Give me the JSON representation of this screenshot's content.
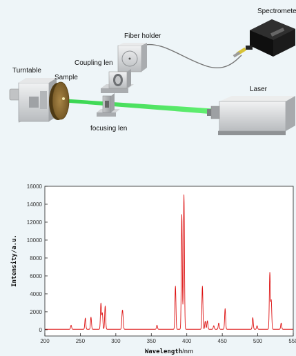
{
  "setup": {
    "labels": {
      "spectrometer": "Spectrometer",
      "fiber_holder": "Fiber holder",
      "coupling_len": "Coupling len",
      "turntable": "Turntable",
      "sample": "Sample",
      "laser": "Laser",
      "focusing_len": "focusing len"
    },
    "colors": {
      "laser_beam": "#33e04a",
      "sample_disk": "#8a6a2e",
      "device_body": "#d9dadb",
      "spectrometer_body": "#1c1c1c"
    }
  },
  "chart_data": {
    "type": "line",
    "xlabel": "Wavelength",
    "xunit": "/nm",
    "ylabel": "Intensity/a.u.",
    "xlim": [
      200,
      550
    ],
    "ylim": [
      -700,
      16000
    ],
    "x_ticks": [
      200,
      250,
      300,
      350,
      400,
      450,
      500,
      550
    ],
    "y_ticks": [
      0,
      2000,
      4000,
      6000,
      8000,
      10000,
      12000,
      14000,
      16000
    ],
    "line_color": "#dd1111",
    "grid": false,
    "baseline": 50,
    "peaks": [
      {
        "x": 237,
        "y": 450
      },
      {
        "x": 257,
        "y": 1250
      },
      {
        "x": 265,
        "y": 1350
      },
      {
        "x": 279,
        "y": 2900
      },
      {
        "x": 281,
        "y": 1800
      },
      {
        "x": 285,
        "y": 2600
      },
      {
        "x": 309,
        "y": 1550
      },
      {
        "x": 310,
        "y": 1200
      },
      {
        "x": 358,
        "y": 450
      },
      {
        "x": 384,
        "y": 4800
      },
      {
        "x": 393,
        "y": 12800
      },
      {
        "x": 396,
        "y": 15000
      },
      {
        "x": 422,
        "y": 4800
      },
      {
        "x": 426,
        "y": 900
      },
      {
        "x": 429,
        "y": 950
      },
      {
        "x": 438,
        "y": 400
      },
      {
        "x": 445,
        "y": 700
      },
      {
        "x": 454,
        "y": 2300
      },
      {
        "x": 493,
        "y": 1300
      },
      {
        "x": 499,
        "y": 400
      },
      {
        "x": 517,
        "y": 6300
      },
      {
        "x": 519,
        "y": 3200
      },
      {
        "x": 533,
        "y": 700
      }
    ]
  }
}
